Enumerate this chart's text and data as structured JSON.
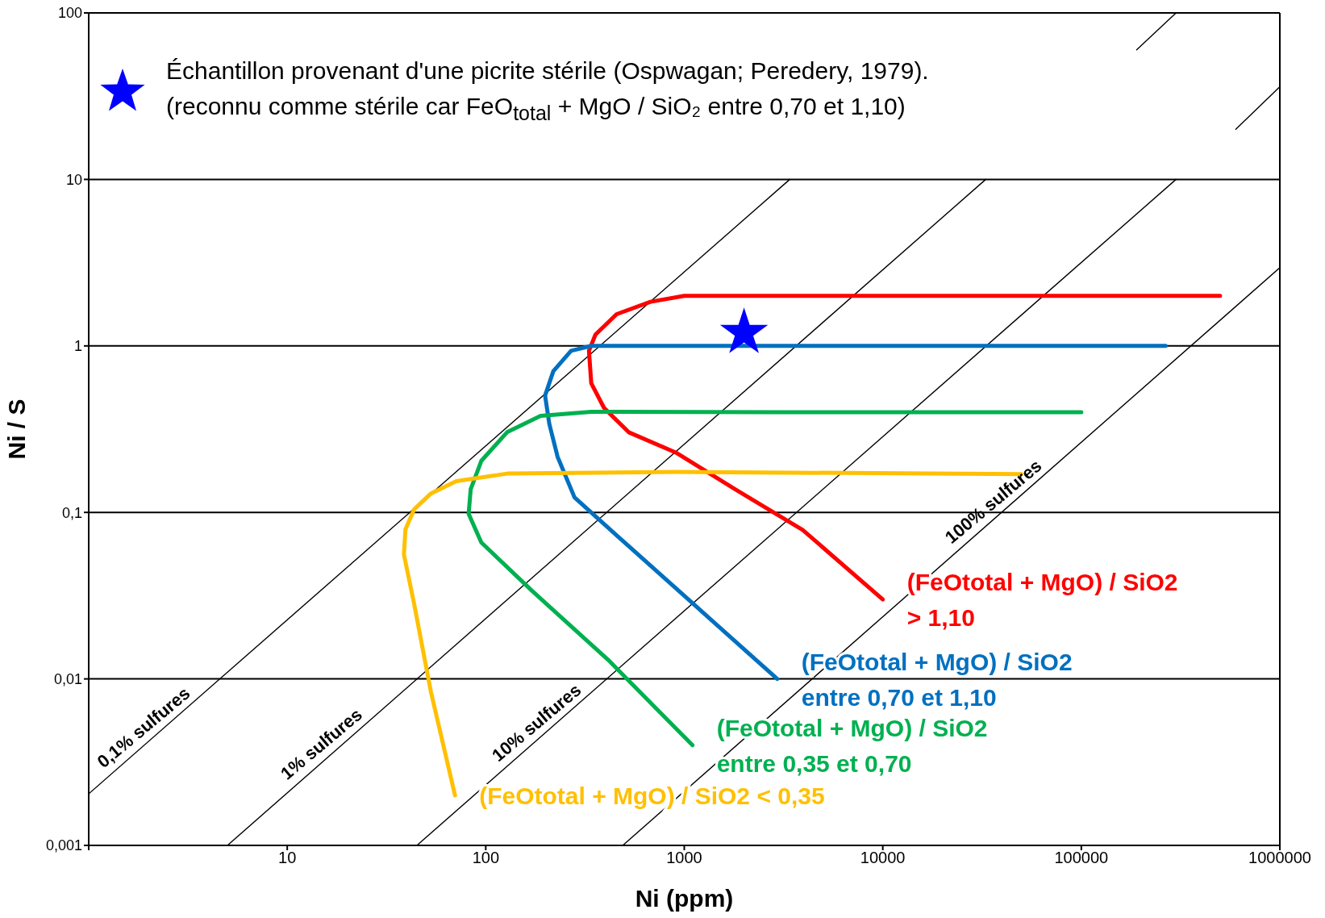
{
  "chart_data": {
    "type": "line",
    "xlabel": "Ni (ppm)",
    "ylabel": "Ni / S",
    "log": "xy",
    "grid": "y",
    "legend": "top left",
    "marker": "none",
    "xlim": [
      1,
      1000000
    ],
    "ylim": [
      0.001,
      100
    ],
    "xticks": [
      {
        "value": 1,
        "label": null
      },
      10,
      100,
      1000,
      10000,
      100000,
      1000000
    ],
    "yticks": [
      {
        "value": 0.001,
        "label": "0,001"
      },
      {
        "value": 0.01,
        "label": "0,01"
      },
      {
        "value": 0.1,
        "label": "0,1"
      },
      1,
      10,
      100
    ],
    "series": [
      {
        "color": "#000000",
        "x": [
          1,
          3400
        ],
        "values": [
          0.00204,
          10
        ]
      },
      {
        "color": "#000000",
        "x": [
          5,
          33000,
          120000,
          190000,
          300000
        ],
        "values": [
          0.001,
          10,
          null,
          60,
          100
        ]
      },
      {
        "color": "#000000",
        "x": [
          45,
          300000,
          450000,
          600000,
          1000000
        ],
        "values": [
          0.001,
          10,
          null,
          20,
          36
        ]
      },
      {
        "color": "#000000",
        "x": [
          490,
          1000000
        ],
        "values": [
          0.001,
          2.95
        ]
      },
      {
        "name": "(FeOtotal + MgO) / SiO2\n> 1,10",
        "color": "#ff0000",
        "x": [
          10000,
          3945,
          1800,
          906,
          525,
          394,
          340,
          331,
          357,
          456,
          676,
          1000,
          3000,
          30000,
          500000
        ],
        "values": [
          0.03,
          0.0786,
          0.138,
          0.229,
          0.303,
          0.425,
          0.596,
          0.934,
          1.17,
          1.55,
          1.84,
          2.0,
          2.0,
          2.0,
          2.0
        ]
      },
      {
        "name": "(FeOtotal + MgO) / SiO2\nentre 0,70 et 1,10",
        "color": "#0070c0",
        "x": [
          2940,
          1100,
          500,
          280,
          230,
          209,
          199,
          219,
          269,
          340,
          3000,
          30000,
          266000
        ],
        "values": [
          0.01,
          0.0285,
          0.066,
          0.123,
          0.216,
          0.34,
          0.503,
          0.705,
          0.934,
          1.0,
          1.0,
          1.0,
          1.0
        ]
      },
      {
        "name": "(FeOtotal + MgO) / SiO2\nentre 0,35 et 0,70",
        "color": "#00b050",
        "x": [
          1100,
          414,
          171,
          95,
          82,
          84,
          95,
          128,
          189,
          340,
          3000,
          100000
        ],
        "values": [
          0.004,
          0.013,
          0.0338,
          0.066,
          0.098,
          0.138,
          0.204,
          0.303,
          0.38,
          0.402,
          0.4,
          0.4
        ]
      },
      {
        "name": "(FeOtotal + MgO) / SiO2 < 0,35",
        "color": "#ffc000",
        "x": [
          70,
          53,
          43.5,
          38.7,
          39.4,
          43.5,
          53,
          71,
          128,
          906,
          50000
        ],
        "values": [
          0.002,
          0.0083,
          0.0285,
          0.056,
          0.079,
          0.104,
          0.13,
          0.154,
          0.171,
          0.175,
          0.17
        ]
      },
      {
        "type": "scatter",
        "marker": "star",
        "name": "Échantillon provenant d'une picrite stérile (Ospwagan; Peredery, 1979).\n(reconnu comme stérile car FeO$_{total}$ + MgO / SiO₂ entre 0,70 et 1,10)",
        "color": "#0000ff",
        "x": [
          2000
        ],
        "values": [
          1.2
        ]
      }
    ],
    "annotations": [
      {
        "text": "0,1% sulfures",
        "x": 2.1,
        "y": 0.0044
      },
      {
        "text": "1% sulfures",
        "x": 16.5,
        "y": 0.0035
      },
      {
        "text": "10% sulfures",
        "x": 200,
        "y": 0.0047
      },
      {
        "text": "100% sulfures",
        "x": 40000,
        "y": 0.1
      }
    ]
  }
}
